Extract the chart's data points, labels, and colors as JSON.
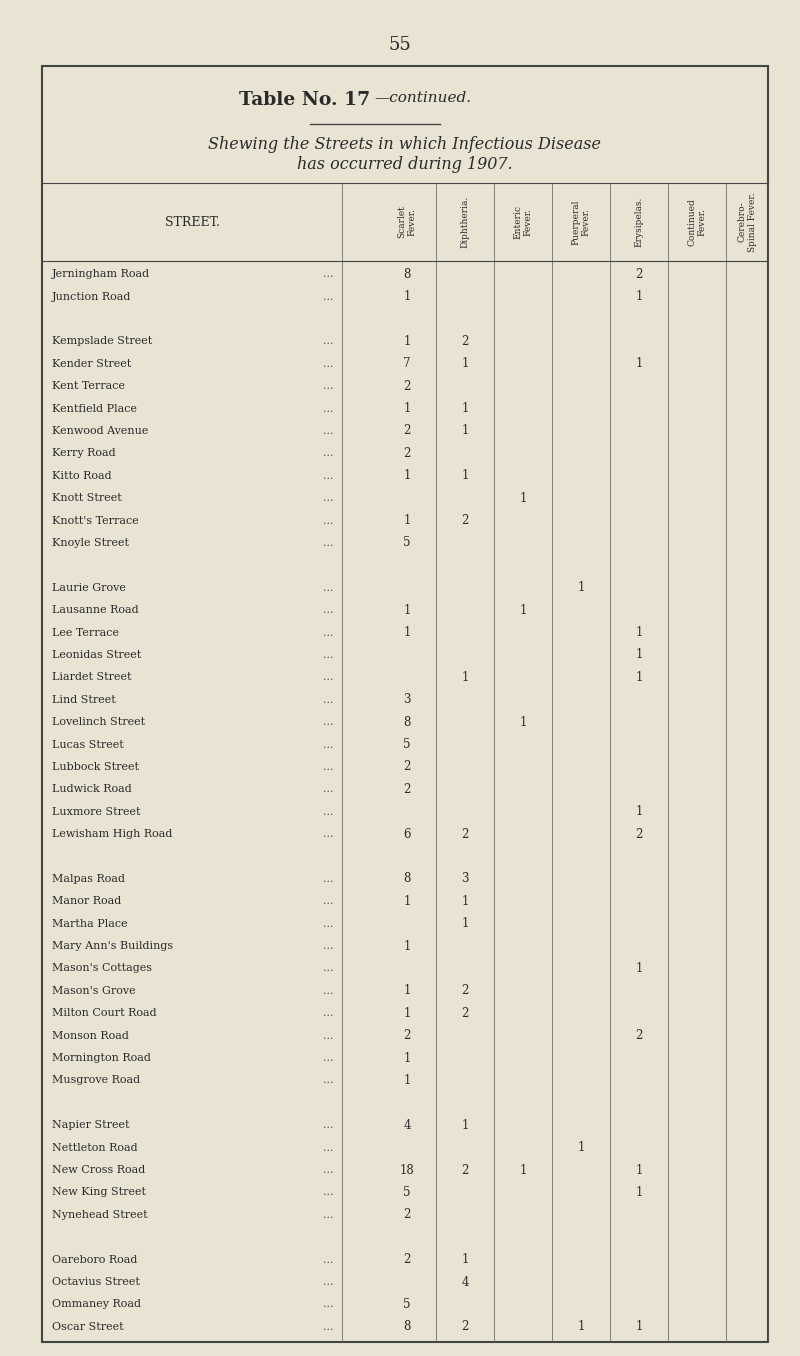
{
  "page_number": "55",
  "title_bold": "Table No. 17",
  "title_italic": "—continued.",
  "subtitle_line1": "Shewing the Streets in which Infectious Disease",
  "subtitle_line2": "has occurred during 1907.",
  "col_headers": [
    "Scarlet\nFever.",
    "Diphtheria.",
    "Enteric\nFever.",
    "Puerperal\nFever.",
    "Erysipelas.",
    "Continued\nFever.",
    "Cerebro-\nSpinal Fever."
  ],
  "street_label": "STREET.",
  "bg_color": "#e8e3d3",
  "text_color": "#2a2a2a",
  "rows": [
    {
      "street": "Jerningham Road",
      "dots": true,
      "sf": "8",
      "di": "",
      "ef": "",
      "pf": "",
      "er": "2",
      "cf": "",
      "cs": ""
    },
    {
      "street": "Junction Road",
      "dots": true,
      "sf": "1",
      "di": "",
      "ef": "",
      "pf": "",
      "er": "1",
      "cf": "",
      "cs": ""
    },
    {
      "street": "",
      "dots": false,
      "sf": "",
      "di": "",
      "ef": "",
      "pf": "",
      "er": "",
      "cf": "",
      "cs": ""
    },
    {
      "street": "Kempslade Street",
      "dots": true,
      "sf": "1",
      "di": "2",
      "ef": "",
      "pf": "",
      "er": "",
      "cf": "",
      "cs": ""
    },
    {
      "street": "Kender Street",
      "dots": true,
      "sf": "7",
      "di": "1",
      "ef": "",
      "pf": "",
      "er": "1",
      "cf": "",
      "cs": ""
    },
    {
      "street": "Kent Terrace",
      "dots": true,
      "sf": "2",
      "di": "",
      "ef": "",
      "pf": "",
      "er": "",
      "cf": "",
      "cs": ""
    },
    {
      "street": "Kentfield Place",
      "dots": true,
      "sf": "1",
      "di": "1",
      "ef": "",
      "pf": "",
      "er": "",
      "cf": "",
      "cs": ""
    },
    {
      "street": "Kenwood Avenue",
      "dots": true,
      "sf": "2",
      "di": "1",
      "ef": "",
      "pf": "",
      "er": "",
      "cf": "",
      "cs": ""
    },
    {
      "street": "Kerry Road",
      "dots": true,
      "sf": "2",
      "di": "",
      "ef": "",
      "pf": "",
      "er": "",
      "cf": "",
      "cs": ""
    },
    {
      "street": "Kitto Road",
      "dots": true,
      "sf": "1",
      "di": "1",
      "ef": "",
      "pf": "",
      "er": "",
      "cf": "",
      "cs": ""
    },
    {
      "street": "Knott Street",
      "dots": true,
      "sf": "",
      "di": "",
      "ef": "1",
      "pf": "",
      "er": "",
      "cf": "",
      "cs": ""
    },
    {
      "street": "Knott's Terrace",
      "dots": true,
      "sf": "1",
      "di": "2",
      "ef": "",
      "pf": "",
      "er": "",
      "cf": "",
      "cs": ""
    },
    {
      "street": "Knoyle Street",
      "dots": true,
      "sf": "5",
      "di": "",
      "ef": "",
      "pf": "",
      "er": "",
      "cf": "",
      "cs": ""
    },
    {
      "street": "",
      "dots": false,
      "sf": "",
      "di": "",
      "ef": "",
      "pf": "",
      "er": "",
      "cf": "",
      "cs": ""
    },
    {
      "street": "Laurie Grove",
      "dots": true,
      "sf": "",
      "di": "",
      "ef": "",
      "pf": "1",
      "er": "",
      "cf": "",
      "cs": ""
    },
    {
      "street": "Lausanne Road",
      "dots": true,
      "sf": "1",
      "di": "",
      "ef": "1",
      "pf": "",
      "er": "",
      "cf": "",
      "cs": ""
    },
    {
      "street": "Lee Terrace",
      "dots": true,
      "sf": "1",
      "di": "",
      "ef": "",
      "pf": "",
      "er": "1",
      "cf": "",
      "cs": ""
    },
    {
      "street": "Leonidas Street",
      "dots": true,
      "sf": "",
      "di": "",
      "ef": "",
      "pf": "",
      "er": "1",
      "cf": "",
      "cs": ""
    },
    {
      "street": "Liardet Street",
      "dots": true,
      "sf": "",
      "di": "1",
      "ef": "",
      "pf": "",
      "er": "1",
      "cf": "",
      "cs": ""
    },
    {
      "street": "Lind Street",
      "dots": true,
      "sf": "3",
      "di": "",
      "ef": "",
      "pf": "",
      "er": "",
      "cf": "",
      "cs": ""
    },
    {
      "street": "Lovelinch Street",
      "dots": true,
      "sf": "8",
      "di": "",
      "ef": "1",
      "pf": "",
      "er": "",
      "cf": "",
      "cs": ""
    },
    {
      "street": "Lucas Street",
      "dots": true,
      "sf": "5",
      "di": "",
      "ef": "",
      "pf": "",
      "er": "",
      "cf": "",
      "cs": ""
    },
    {
      "street": "Lubbock Street",
      "dots": true,
      "sf": "2",
      "di": "",
      "ef": "",
      "pf": "",
      "er": "",
      "cf": "",
      "cs": ""
    },
    {
      "street": "Ludwick Road",
      "dots": true,
      "sf": "2",
      "di": "",
      "ef": "",
      "pf": "",
      "er": "",
      "cf": "",
      "cs": ""
    },
    {
      "street": "Luxmore Street",
      "dots": true,
      "sf": "",
      "di": "",
      "ef": "",
      "pf": "",
      "er": "1",
      "cf": "",
      "cs": ""
    },
    {
      "street": "Lewisham High Road",
      "dots": true,
      "sf": "6",
      "di": "2",
      "ef": "",
      "pf": "",
      "er": "2",
      "cf": "",
      "cs": ""
    },
    {
      "street": "",
      "dots": false,
      "sf": "",
      "di": "",
      "ef": "",
      "pf": "",
      "er": "",
      "cf": "",
      "cs": ""
    },
    {
      "street": "Malpas Road",
      "dots": true,
      "sf": "8",
      "di": "3",
      "ef": "",
      "pf": "",
      "er": "",
      "cf": "",
      "cs": ""
    },
    {
      "street": "Manor Road",
      "dots": true,
      "sf": "1",
      "di": "1",
      "ef": "",
      "pf": "",
      "er": "",
      "cf": "",
      "cs": ""
    },
    {
      "street": "Martha Place",
      "dots": true,
      "sf": "",
      "di": "1",
      "ef": "",
      "pf": "",
      "er": "",
      "cf": "",
      "cs": ""
    },
    {
      "street": "Mary Ann's Buildings",
      "dots": true,
      "sf": "1",
      "di": "",
      "ef": "",
      "pf": "",
      "er": "",
      "cf": "",
      "cs": ""
    },
    {
      "street": "Mason's Cottages",
      "dots": true,
      "sf": "",
      "di": "",
      "ef": "",
      "pf": "",
      "er": "1",
      "cf": "",
      "cs": ""
    },
    {
      "street": "Mason's Grove",
      "dots": true,
      "sf": "1",
      "di": "2",
      "ef": "",
      "pf": "",
      "er": "",
      "cf": "",
      "cs": ""
    },
    {
      "street": "Milton Court Road",
      "dots": true,
      "sf": "1",
      "di": "2",
      "ef": "",
      "pf": "",
      "er": "",
      "cf": "",
      "cs": ""
    },
    {
      "street": "Monson Road",
      "dots": true,
      "sf": "2",
      "di": "",
      "ef": "",
      "pf": "",
      "er": "2",
      "cf": "",
      "cs": ""
    },
    {
      "street": "Mornington Road",
      "dots": true,
      "sf": "1",
      "di": "",
      "ef": "",
      "pf": "",
      "er": "",
      "cf": "",
      "cs": ""
    },
    {
      "street": "Musgrove Road",
      "dots": true,
      "sf": "1",
      "di": "",
      "ef": "",
      "pf": "",
      "er": "",
      "cf": "",
      "cs": ""
    },
    {
      "street": "",
      "dots": false,
      "sf": "",
      "di": "",
      "ef": "",
      "pf": "",
      "er": "",
      "cf": "",
      "cs": ""
    },
    {
      "street": "Napier Street",
      "dots": true,
      "sf": "4",
      "di": "1",
      "ef": "",
      "pf": "",
      "er": "",
      "cf": "",
      "cs": ""
    },
    {
      "street": "Nettleton Road",
      "dots": true,
      "sf": "",
      "di": "",
      "ef": "",
      "pf": "1",
      "er": "",
      "cf": "",
      "cs": ""
    },
    {
      "street": "New Cross Road",
      "dots": true,
      "sf": "18",
      "di": "2",
      "ef": "1",
      "pf": "",
      "er": "1",
      "cf": "",
      "cs": ""
    },
    {
      "street": "New King Street",
      "dots": true,
      "sf": "5",
      "di": "",
      "ef": "",
      "pf": "",
      "er": "1",
      "cf": "",
      "cs": ""
    },
    {
      "street": "Nynehead Street",
      "dots": true,
      "sf": "2",
      "di": "",
      "ef": "",
      "pf": "",
      "er": "",
      "cf": "",
      "cs": ""
    },
    {
      "street": "",
      "dots": false,
      "sf": "",
      "di": "",
      "ef": "",
      "pf": "",
      "er": "",
      "cf": "",
      "cs": ""
    },
    {
      "street": "Oareboro Road",
      "dots": true,
      "sf": "2",
      "di": "1",
      "ef": "",
      "pf": "",
      "er": "",
      "cf": "",
      "cs": ""
    },
    {
      "street": "Octavius Street",
      "dots": true,
      "sf": "",
      "di": "4",
      "ef": "",
      "pf": "",
      "er": "",
      "cf": "",
      "cs": ""
    },
    {
      "street": "Ommaney Road",
      "dots": true,
      "sf": "5",
      "di": "",
      "ef": "",
      "pf": "",
      "er": "",
      "cf": "",
      "cs": ""
    },
    {
      "street": "Oscar Street",
      "dots": true,
      "sf": "8",
      "di": "2",
      "ef": "",
      "pf": "1",
      "er": "1",
      "cf": "",
      "cs": ""
    }
  ]
}
